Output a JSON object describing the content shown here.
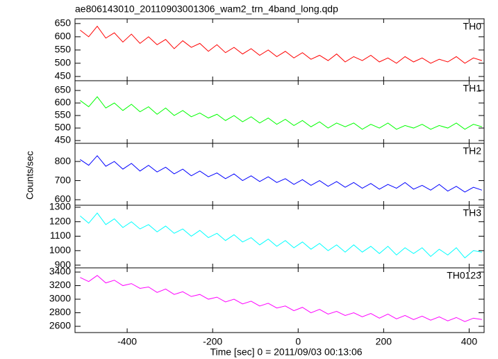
{
  "chart_data": [
    {
      "type": "line",
      "title": "ae806143010_20110903001306_wam2_trn_4band_long.qdp",
      "x": [
        -510,
        -490,
        -470,
        -450,
        -430,
        -410,
        -390,
        -370,
        -350,
        -330,
        -310,
        -290,
        -270,
        -250,
        -230,
        -210,
        -190,
        -170,
        -150,
        -130,
        -110,
        -90,
        -70,
        -50,
        -30,
        -10,
        10,
        30,
        50,
        70,
        90,
        110,
        130,
        150,
        170,
        190,
        210,
        230,
        250,
        270,
        290,
        310,
        330,
        350,
        370,
        390,
        410,
        430
      ],
      "series": [
        {
          "name": "TH0",
          "color": "#ff0000",
          "values": [
            625,
            600,
            640,
            595,
            615,
            580,
            610,
            575,
            600,
            570,
            590,
            555,
            585,
            560,
            575,
            545,
            570,
            540,
            560,
            535,
            555,
            530,
            550,
            525,
            545,
            520,
            540,
            515,
            530,
            510,
            535,
            505,
            525,
            510,
            530,
            505,
            520,
            500,
            525,
            505,
            520,
            500,
            515,
            505,
            525,
            500,
            520,
            510
          ]
        }
      ],
      "xlim": [
        -522,
        435
      ],
      "ylim": [
        434,
        668
      ],
      "yticks": [
        450,
        500,
        550,
        600,
        650
      ]
    },
    {
      "type": "line",
      "x": [
        -510,
        -490,
        -470,
        -450,
        -430,
        -410,
        -390,
        -370,
        -350,
        -330,
        -310,
        -290,
        -270,
        -250,
        -230,
        -210,
        -190,
        -170,
        -150,
        -130,
        -110,
        -90,
        -70,
        -50,
        -30,
        -10,
        10,
        30,
        50,
        70,
        90,
        110,
        130,
        150,
        170,
        190,
        210,
        230,
        250,
        270,
        290,
        310,
        330,
        350,
        370,
        390,
        410,
        430
      ],
      "series": [
        {
          "name": "TH1",
          "color": "#00ff00",
          "values": [
            610,
            585,
            625,
            580,
            600,
            570,
            595,
            565,
            585,
            555,
            580,
            550,
            570,
            545,
            560,
            540,
            555,
            530,
            550,
            525,
            545,
            520,
            540,
            515,
            535,
            510,
            530,
            505,
            525,
            500,
            520,
            505,
            520,
            495,
            515,
            500,
            520,
            495,
            510,
            500,
            515,
            495,
            510,
            500,
            520,
            495,
            515,
            505
          ]
        }
      ],
      "xlim": [
        -522,
        435
      ],
      "ylim": [
        439,
        689
      ],
      "yticks": [
        450,
        500,
        550,
        600,
        650
      ]
    },
    {
      "type": "line",
      "ylabel": "Counts/sec",
      "x": [
        -510,
        -490,
        -470,
        -450,
        -430,
        -410,
        -390,
        -370,
        -350,
        -330,
        -310,
        -290,
        -270,
        -250,
        -230,
        -210,
        -190,
        -170,
        -150,
        -130,
        -110,
        -90,
        -70,
        -50,
        -30,
        -10,
        10,
        30,
        50,
        70,
        90,
        110,
        130,
        150,
        170,
        190,
        210,
        230,
        250,
        270,
        290,
        310,
        330,
        350,
        370,
        390,
        410,
        430
      ],
      "series": [
        {
          "name": "TH2",
          "color": "#0000ff",
          "values": [
            810,
            780,
            830,
            775,
            800,
            760,
            790,
            750,
            780,
            745,
            770,
            735,
            760,
            725,
            750,
            720,
            740,
            710,
            735,
            700,
            725,
            695,
            720,
            690,
            710,
            680,
            705,
            675,
            700,
            670,
            695,
            665,
            690,
            660,
            685,
            655,
            680,
            660,
            690,
            655,
            675,
            650,
            680,
            645,
            670,
            640,
            665,
            650
          ]
        }
      ],
      "xlim": [
        -522,
        435
      ],
      "ylim": [
        571,
        895
      ],
      "yticks": [
        600,
        700,
        800
      ]
    },
    {
      "type": "line",
      "x": [
        -510,
        -490,
        -470,
        -450,
        -430,
        -410,
        -390,
        -370,
        -350,
        -330,
        -310,
        -290,
        -270,
        -250,
        -230,
        -210,
        -190,
        -170,
        -150,
        -130,
        -110,
        -90,
        -70,
        -50,
        -30,
        -10,
        10,
        30,
        50,
        70,
        90,
        110,
        130,
        150,
        170,
        190,
        210,
        230,
        250,
        270,
        290,
        310,
        330,
        350,
        370,
        390,
        410,
        430
      ],
      "series": [
        {
          "name": "TH3",
          "color": "#00ffff",
          "values": [
            1240,
            1190,
            1260,
            1180,
            1220,
            1160,
            1200,
            1150,
            1180,
            1130,
            1170,
            1120,
            1150,
            1100,
            1140,
            1090,
            1120,
            1070,
            1110,
            1060,
            1090,
            1040,
            1080,
            1030,
            1070,
            1020,
            1060,
            1010,
            1050,
            1000,
            1040,
            990,
            1040,
            990,
            1030,
            980,
            1030,
            970,
            1020,
            980,
            1020,
            960,
            1010,
            970,
            1020,
            950,
            1000,
            990
          ]
        }
      ],
      "xlim": [
        -522,
        435
      ],
      "ylim": [
        881,
        1314
      ],
      "yticks": [
        900,
        1000,
        1100,
        1200,
        1300
      ]
    },
    {
      "type": "line",
      "xlabel": "Time [sec] 0 = 2011/09/03 00:13:06",
      "x": [
        -510,
        -490,
        -470,
        -450,
        -430,
        -410,
        -390,
        -370,
        -350,
        -330,
        -310,
        -290,
        -270,
        -250,
        -230,
        -210,
        -190,
        -170,
        -150,
        -130,
        -110,
        -90,
        -70,
        -50,
        -30,
        -10,
        10,
        30,
        50,
        70,
        90,
        110,
        130,
        150,
        170,
        190,
        210,
        230,
        250,
        270,
        290,
        310,
        330,
        350,
        370,
        390,
        410,
        430
      ],
      "series": [
        {
          "name": "TH0123",
          "color": "#ff00ff",
          "values": [
            3320,
            3260,
            3350,
            3240,
            3280,
            3200,
            3230,
            3160,
            3180,
            3100,
            3150,
            3070,
            3110,
            3040,
            3070,
            3000,
            3030,
            2960,
            3000,
            2930,
            2970,
            2900,
            2940,
            2870,
            2900,
            2830,
            2880,
            2800,
            2850,
            2780,
            2820,
            2760,
            2800,
            2740,
            2790,
            2720,
            2780,
            2710,
            2760,
            2700,
            2750,
            2690,
            2740,
            2680,
            2730,
            2670,
            2720,
            2700
          ]
        }
      ],
      "xlim": [
        -522,
        435
      ],
      "ylim": [
        2508,
        3462
      ],
      "yticks": [
        2600,
        2800,
        3000,
        3200,
        3400
      ],
      "xticks": [
        -400,
        -200,
        0,
        200,
        400
      ]
    }
  ]
}
